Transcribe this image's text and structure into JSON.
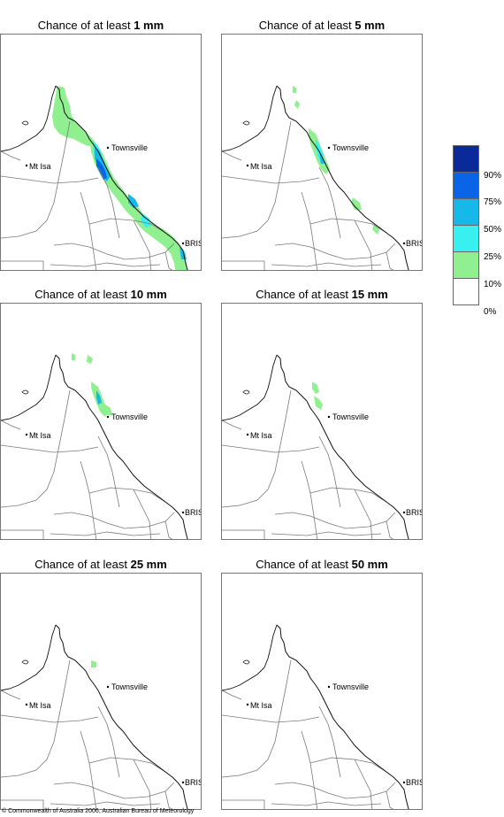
{
  "panels": [
    {
      "title_prefix": "Chance of at least",
      "amount": "1 mm",
      "coverage": "p1"
    },
    {
      "title_prefix": "Chance of at least",
      "amount": "5 mm",
      "coverage": "p5"
    },
    {
      "title_prefix": "Chance of at least",
      "amount": "10 mm",
      "coverage": "p10"
    },
    {
      "title_prefix": "Chance of at least",
      "amount": "15 mm",
      "coverage": "p15"
    },
    {
      "title_prefix": "Chance of at least",
      "amount": "25 mm",
      "coverage": "p25"
    },
    {
      "title_prefix": "Chance of at least",
      "amount": "50 mm",
      "coverage": "p50"
    }
  ],
  "places": {
    "townsville": "Townsville",
    "mt_isa": "Mt Isa",
    "brisbane": "BRIS"
  },
  "legend": {
    "labels": [
      "90%",
      "75%",
      "50%",
      "25%",
      "10%",
      "0%"
    ],
    "colors": [
      "#0a2a9a",
      "#0a64e8",
      "#16b8e8",
      "#38f0f0",
      "#90f090",
      "#ffffff"
    ]
  },
  "map_colors": {
    "green": "#90f090",
    "cyan": "#38f0f0",
    "light_blue": "#16b8e8",
    "blue": "#0a64e8",
    "dark_blue": "#0a2a9a"
  },
  "copyright": "© Commonwealth of Australia 2006, Australian Bureau of Meteorology"
}
